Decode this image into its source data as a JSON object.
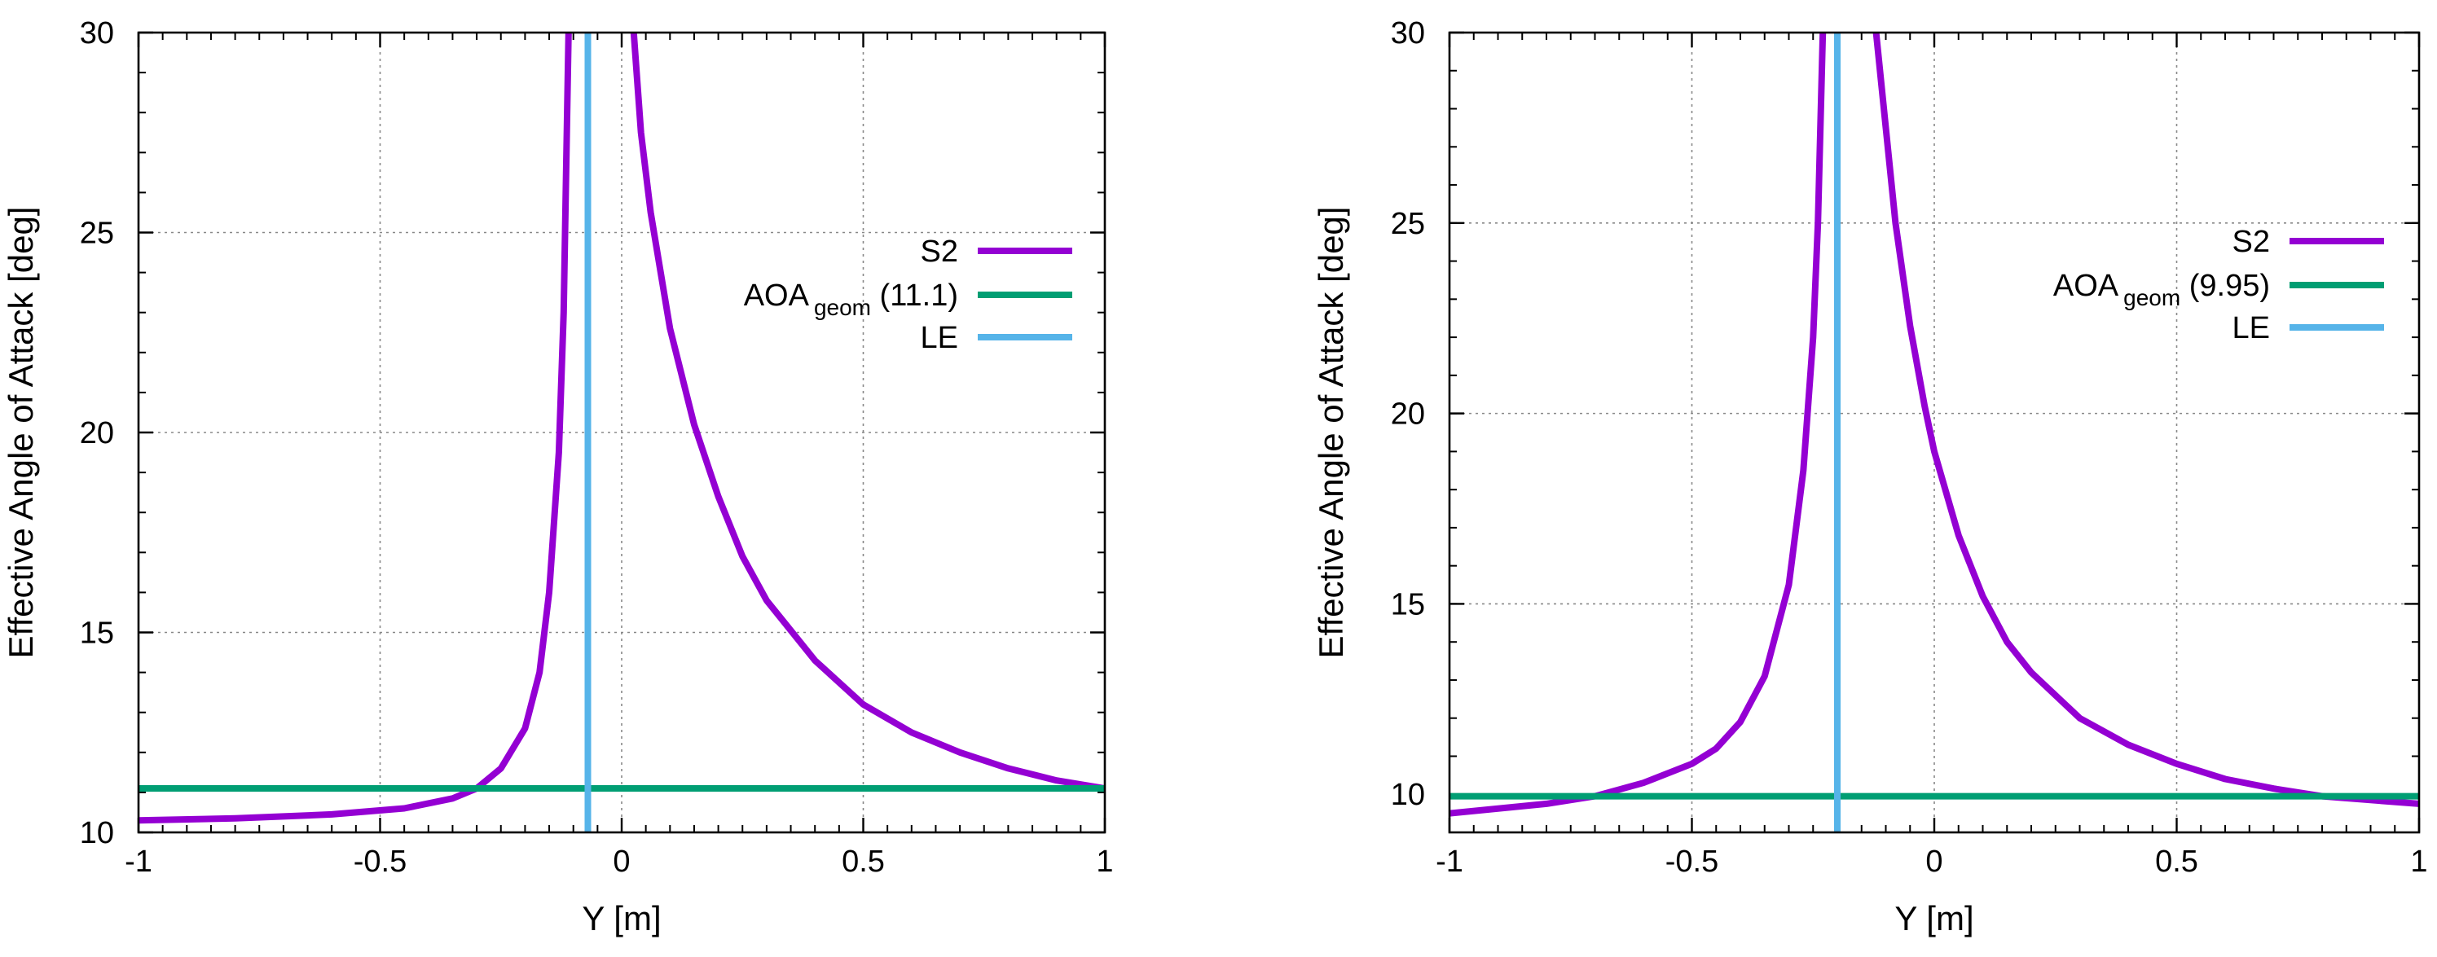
{
  "chart_data": [
    {
      "type": "line",
      "xlabel": "Y [m]",
      "ylabel": "Effective Angle of Attack [deg]",
      "xlim": [
        -1,
        1
      ],
      "ylim": [
        10,
        30
      ],
      "xticks": [
        -1,
        -0.5,
        0,
        0.5,
        1
      ],
      "xtick_labels": [
        "-1",
        "-0.5",
        "0",
        "0.5",
        "1"
      ],
      "yticks": [
        10,
        15,
        20,
        25,
        30
      ],
      "ytick_labels": [
        "10",
        "15",
        "20",
        "25",
        "30"
      ],
      "grid": true,
      "legend_position": "right",
      "legend": [
        {
          "key": "s2",
          "label": "S2",
          "color": "#9400d3"
        },
        {
          "key": "aoa",
          "label": "AOA",
          "sub": "geom",
          "suffix": " (11.1)",
          "color": "#009e73"
        },
        {
          "key": "le",
          "label": "LE",
          "color": "#56b4e9"
        }
      ],
      "series": [
        {
          "name": "S2",
          "color": "#9400d3",
          "segments": [
            {
              "x": [
                -1,
                -0.8,
                -0.6,
                -0.45,
                -0.35,
                -0.3,
                -0.25,
                -0.2,
                -0.17,
                -0.15,
                -0.13,
                -0.12,
                -0.115,
                -0.11
              ],
              "y": [
                10.3,
                10.35,
                10.45,
                10.6,
                10.85,
                11.1,
                11.6,
                12.6,
                14.0,
                16.0,
                19.5,
                23.0,
                26.5,
                30.0
              ]
            },
            {
              "x": [
                0.025,
                0.04,
                0.06,
                0.1,
                0.15,
                0.2,
                0.25,
                0.3,
                0.4,
                0.5,
                0.6,
                0.7,
                0.8,
                0.9,
                1.0
              ],
              "y": [
                30.0,
                27.5,
                25.5,
                22.6,
                20.2,
                18.4,
                16.9,
                15.8,
                14.3,
                13.2,
                12.5,
                12.0,
                11.6,
                11.3,
                11.1
              ]
            }
          ]
        },
        {
          "name": "AOA geom (11.1)",
          "color": "#009e73",
          "x": [
            -1,
            1
          ],
          "y": [
            11.1,
            11.1
          ]
        },
        {
          "name": "LE",
          "color": "#56b4e9",
          "x": [
            -0.07,
            -0.07
          ],
          "y": [
            10,
            30
          ]
        }
      ]
    },
    {
      "type": "line",
      "xlabel": "Y [m]",
      "ylabel": "Effective Angle of Attack [deg]",
      "xlim": [
        -1,
        1
      ],
      "ylim": [
        9,
        30
      ],
      "xticks": [
        -1,
        -0.5,
        0,
        0.5,
        1
      ],
      "xtick_labels": [
        "-1",
        "-0.5",
        "0",
        "0.5",
        "1"
      ],
      "yticks": [
        10,
        15,
        20,
        25,
        30
      ],
      "ytick_labels": [
        "10",
        "15",
        "20",
        "25",
        "30"
      ],
      "grid": true,
      "legend_position": "right",
      "legend": [
        {
          "key": "s2",
          "label": "S2",
          "color": "#9400d3"
        },
        {
          "key": "aoa",
          "label": "AOA",
          "sub": "geom",
          "suffix": " (9.95)",
          "color": "#009e73"
        },
        {
          "key": "le",
          "label": "LE",
          "color": "#56b4e9"
        }
      ],
      "series": [
        {
          "name": "S2",
          "color": "#9400d3",
          "segments": [
            {
              "x": [
                -1,
                -0.8,
                -0.7,
                -0.6,
                -0.5,
                -0.45,
                -0.4,
                -0.35,
                -0.3,
                -0.27,
                -0.25,
                -0.24,
                -0.235,
                -0.23
              ],
              "y": [
                9.5,
                9.75,
                9.95,
                10.3,
                10.8,
                11.2,
                11.9,
                13.1,
                15.5,
                18.5,
                22.0,
                25.0,
                27.5,
                30.0
              ]
            },
            {
              "x": [
                -0.12,
                -0.1,
                -0.08,
                -0.05,
                -0.02,
                0,
                0.05,
                0.1,
                0.15,
                0.2,
                0.3,
                0.4,
                0.5,
                0.6,
                0.7,
                0.8,
                0.9,
                1.0
              ],
              "y": [
                30.0,
                27.5,
                25.0,
                22.3,
                20.2,
                19.0,
                16.8,
                15.2,
                14.0,
                13.2,
                12.0,
                11.3,
                10.8,
                10.4,
                10.15,
                9.95,
                9.85,
                9.75
              ]
            }
          ]
        },
        {
          "name": "AOA geom (9.95)",
          "color": "#009e73",
          "x": [
            -1,
            1
          ],
          "y": [
            9.95,
            9.95
          ]
        },
        {
          "name": "LE",
          "color": "#56b4e9",
          "x": [
            -0.2,
            -0.2
          ],
          "y": [
            9,
            30
          ]
        }
      ]
    }
  ]
}
